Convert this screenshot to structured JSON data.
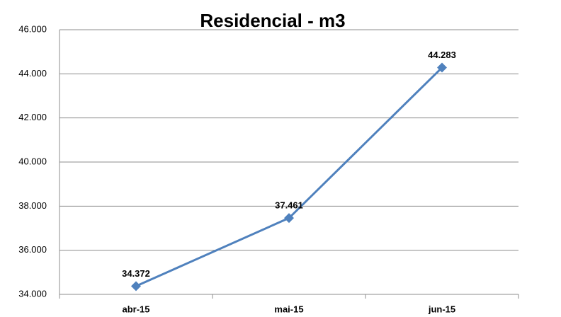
{
  "chart_data": {
    "type": "line",
    "title": "Residencial - m3",
    "categories": [
      "abr-15",
      "mai-15",
      "jun-15"
    ],
    "series": [
      {
        "name": null,
        "color": "#4f81bd",
        "values": [
          34372,
          37461,
          44283
        ],
        "value_labels": [
          "34.372",
          "37.461",
          "44.283"
        ]
      }
    ],
    "ylim": [
      34000,
      46000
    ],
    "yticks": [
      {
        "value": 34000,
        "label": "34.000"
      },
      {
        "value": 36000,
        "label": "36.000"
      },
      {
        "value": 38000,
        "label": "38.000"
      },
      {
        "value": 40000,
        "label": "40.000"
      },
      {
        "value": 42000,
        "label": "42.000"
      },
      {
        "value": 44000,
        "label": "44.000"
      },
      {
        "value": 46000,
        "label": "46.000"
      }
    ],
    "grid": true
  }
}
